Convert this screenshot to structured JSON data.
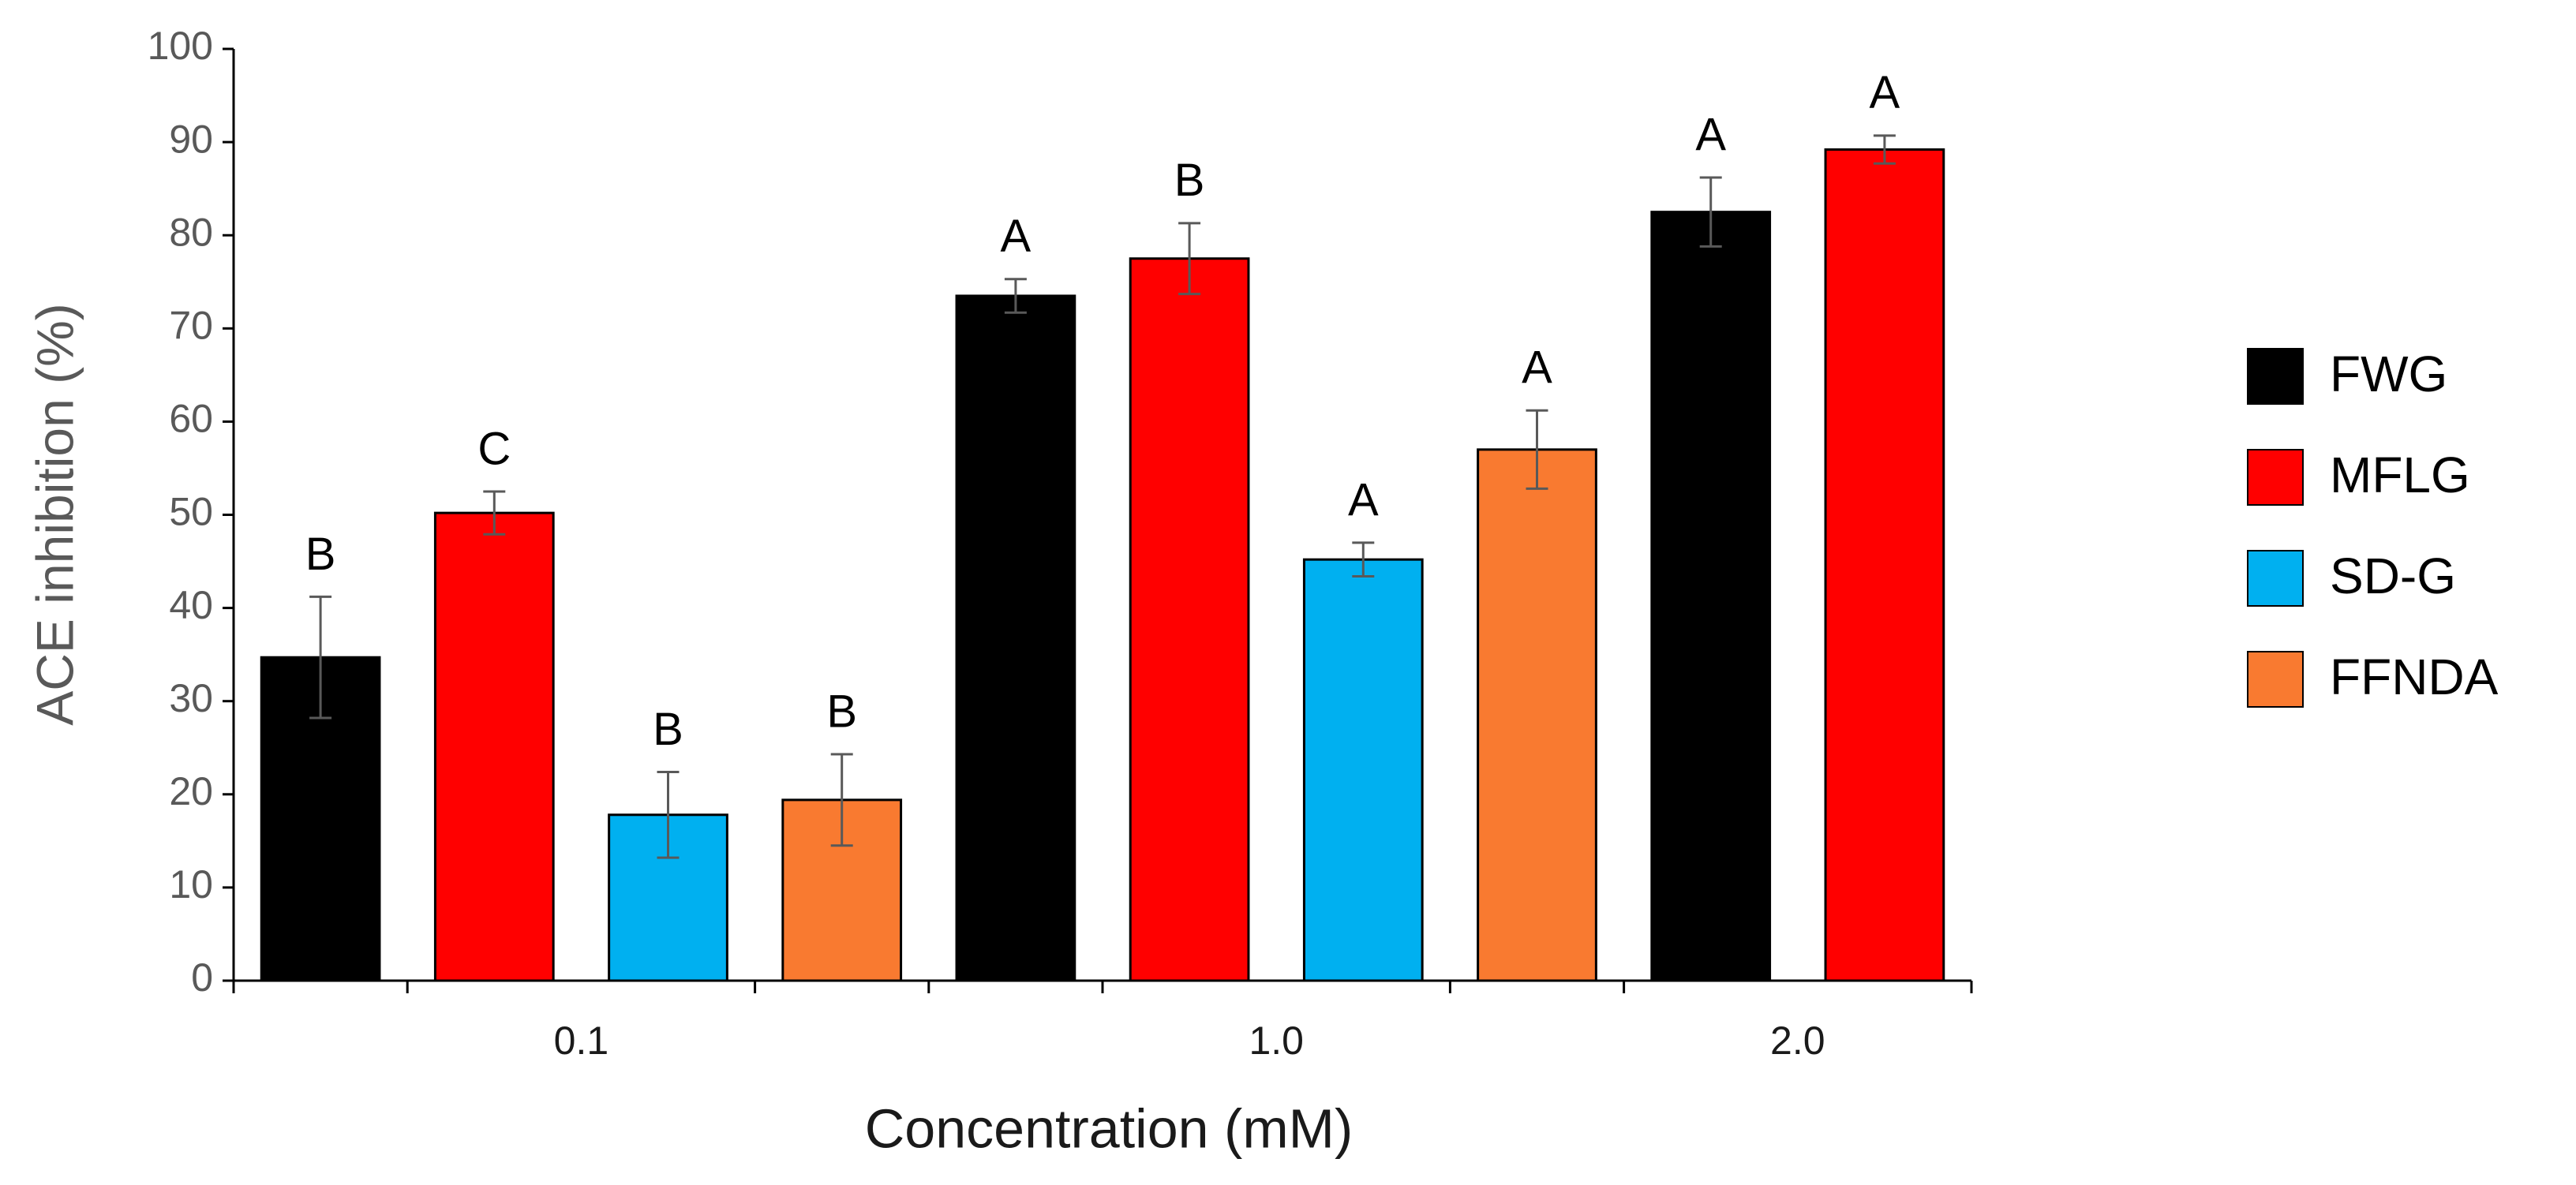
{
  "chart_data": {
    "type": "bar",
    "ylabel": "ACE inhibition (%)",
    "xlabel": "Concentration (mM)",
    "categories": [
      "0.1",
      "1.0",
      "2.0"
    ],
    "series": [
      {
        "name": "FWG",
        "color": "#000000",
        "values": [
          34.7,
          73.5,
          82.5
        ],
        "errors": [
          6.5,
          1.8,
          3.7
        ],
        "letters": [
          "B",
          "A",
          "A"
        ]
      },
      {
        "name": "MFLG",
        "color": "#ff0000",
        "values": [
          50.2,
          77.5,
          89.2
        ],
        "errors": [
          2.3,
          3.8,
          1.5
        ],
        "letters": [
          "C",
          "B",
          "A"
        ]
      },
      {
        "name": "SD-G",
        "color": "#00b0f0",
        "values": [
          17.8,
          45.2,
          null
        ],
        "errors": [
          4.6,
          1.8,
          null
        ],
        "letters": [
          "B",
          "A",
          null
        ]
      },
      {
        "name": "FFNDA",
        "color": "#f97a30",
        "values": [
          19.4,
          57.0,
          null
        ],
        "errors": [
          4.9,
          4.2,
          null
        ],
        "letters": [
          "B",
          "A",
          null
        ]
      }
    ],
    "ylim": [
      0,
      100
    ],
    "yticks": [
      0,
      10,
      20,
      30,
      40,
      50,
      60,
      70,
      80,
      90,
      100
    ],
    "grid": false,
    "legend": "right"
  }
}
